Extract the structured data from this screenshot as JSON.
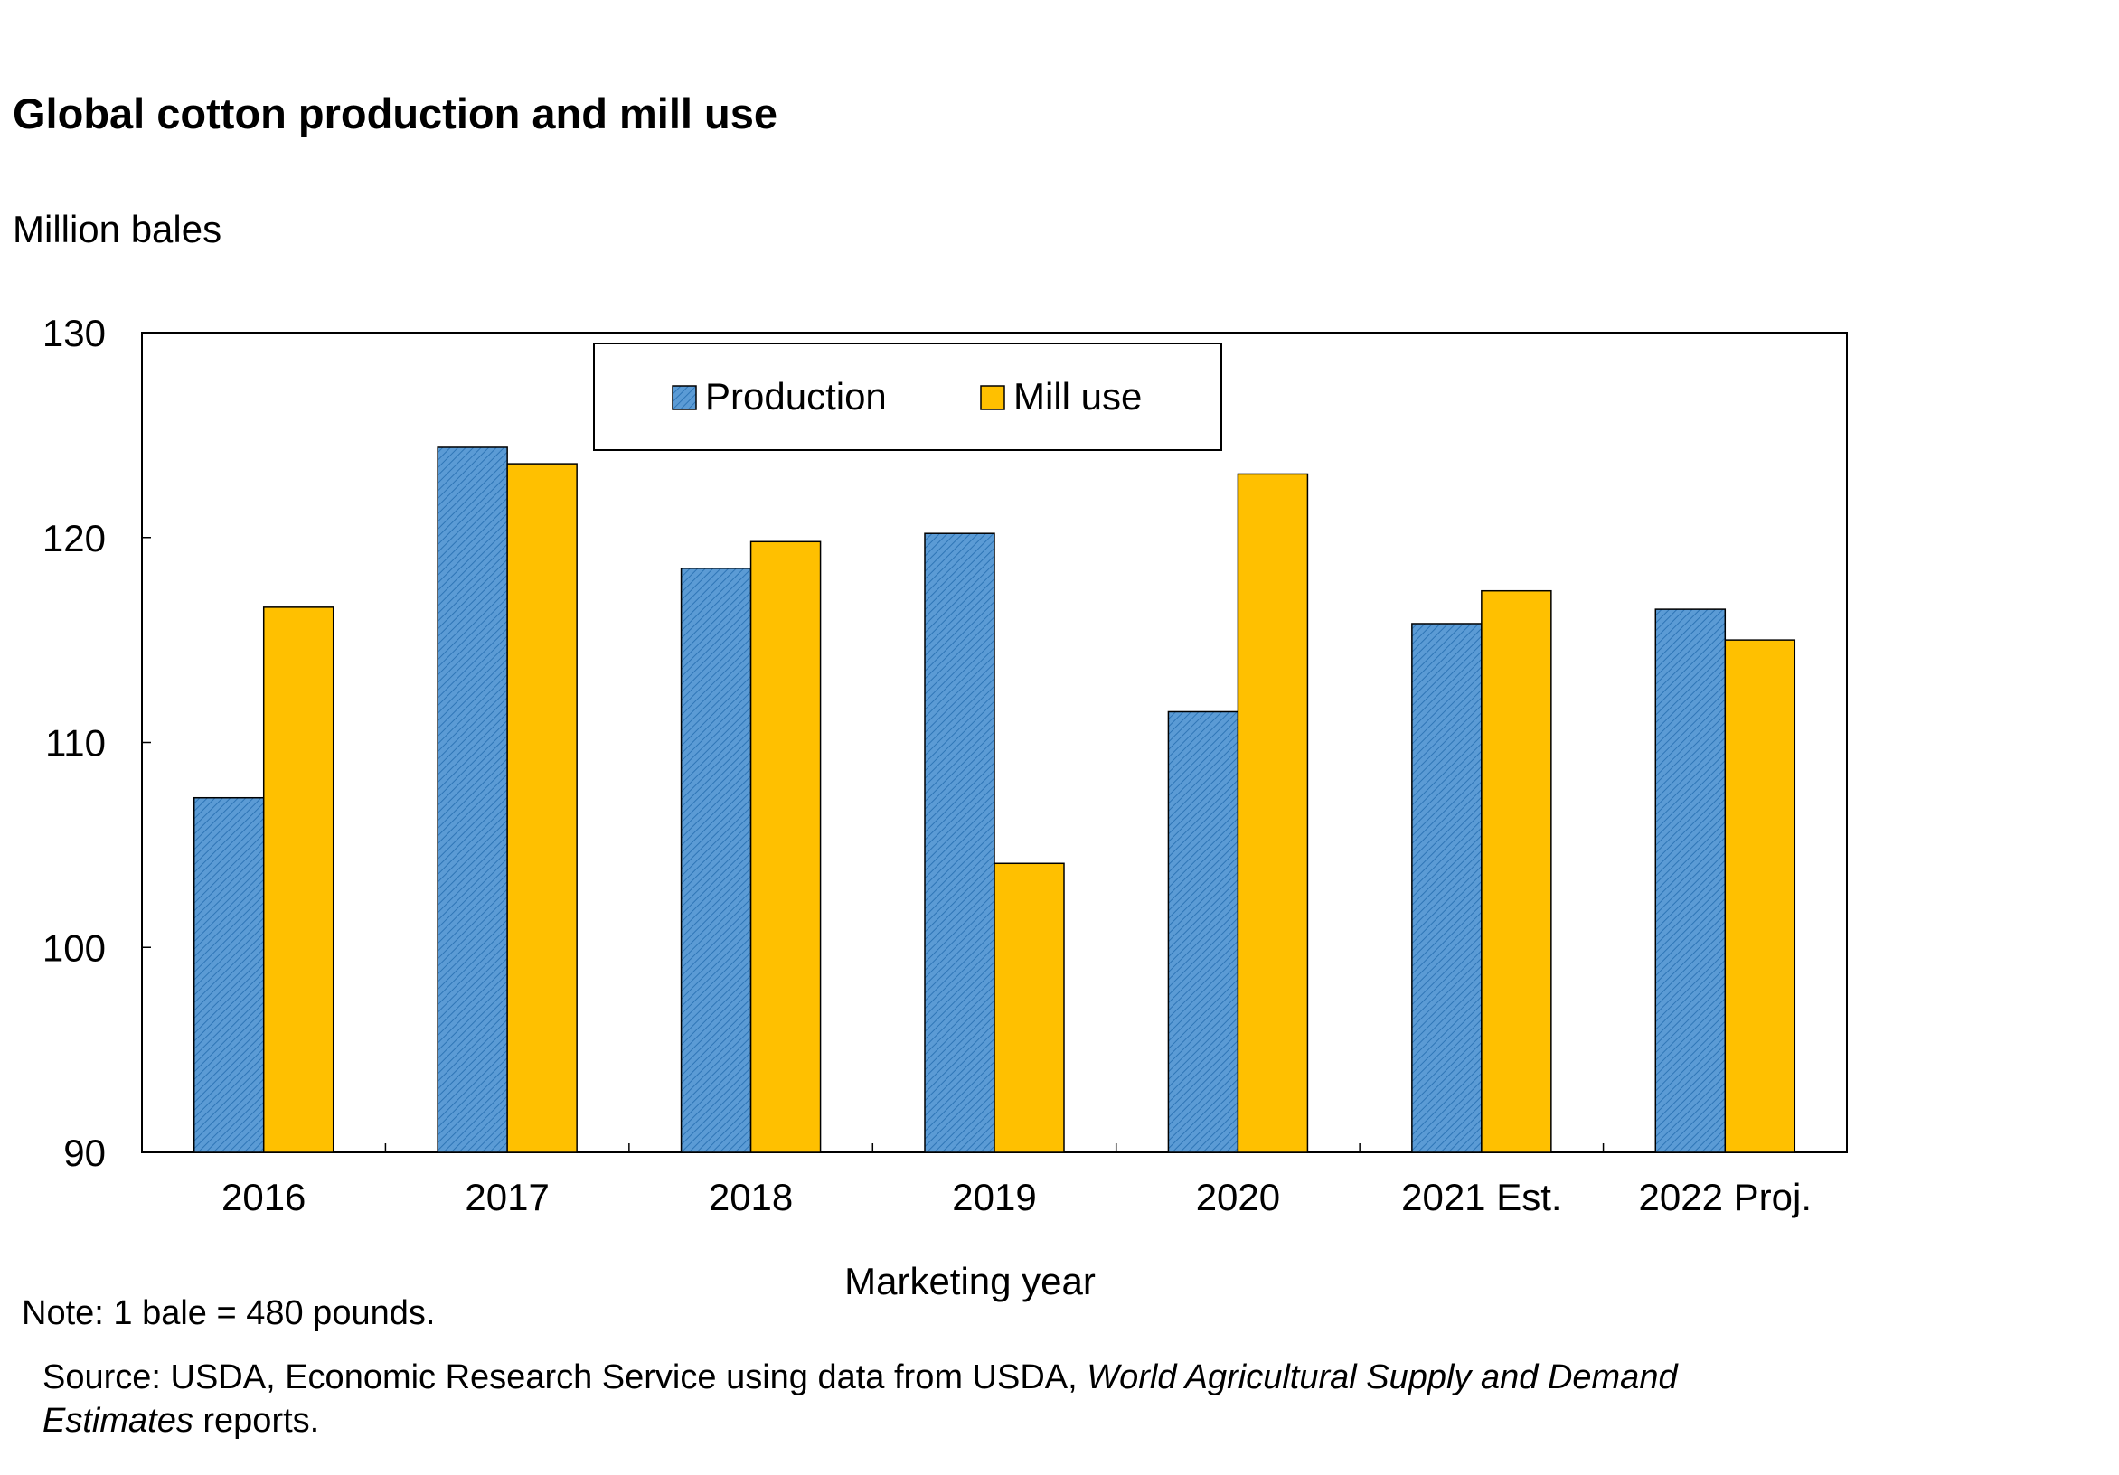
{
  "chart_data": {
    "type": "bar",
    "title": "Global cotton production and mill use",
    "ylabel": "Million bales",
    "xlabel": "Marketing year",
    "categories": [
      "2016",
      "2017",
      "2018",
      "2019",
      "2020",
      "2021 Est.",
      "2022 Proj."
    ],
    "series": [
      {
        "name": "Production",
        "color": "#5B9BD5",
        "values": [
          107.3,
          124.4,
          118.5,
          120.2,
          111.5,
          115.8,
          116.5
        ]
      },
      {
        "name": "Mill use",
        "color": "#FFC000",
        "values": [
          116.6,
          123.6,
          119.8,
          104.1,
          123.1,
          117.4,
          115.0
        ]
      }
    ],
    "ylim": [
      90,
      130
    ],
    "yticks": [
      90,
      100,
      110,
      120,
      130
    ],
    "grid": false,
    "legend_position": "top-center"
  },
  "notes": {
    "note": "Note: 1 bale = 480 pounds.",
    "source_prefix": "Source: USDA, Economic Research Service using data from USDA, ",
    "source_italic": "World Agricultural Supply and Demand Estimates",
    "source_suffix": " reports."
  }
}
